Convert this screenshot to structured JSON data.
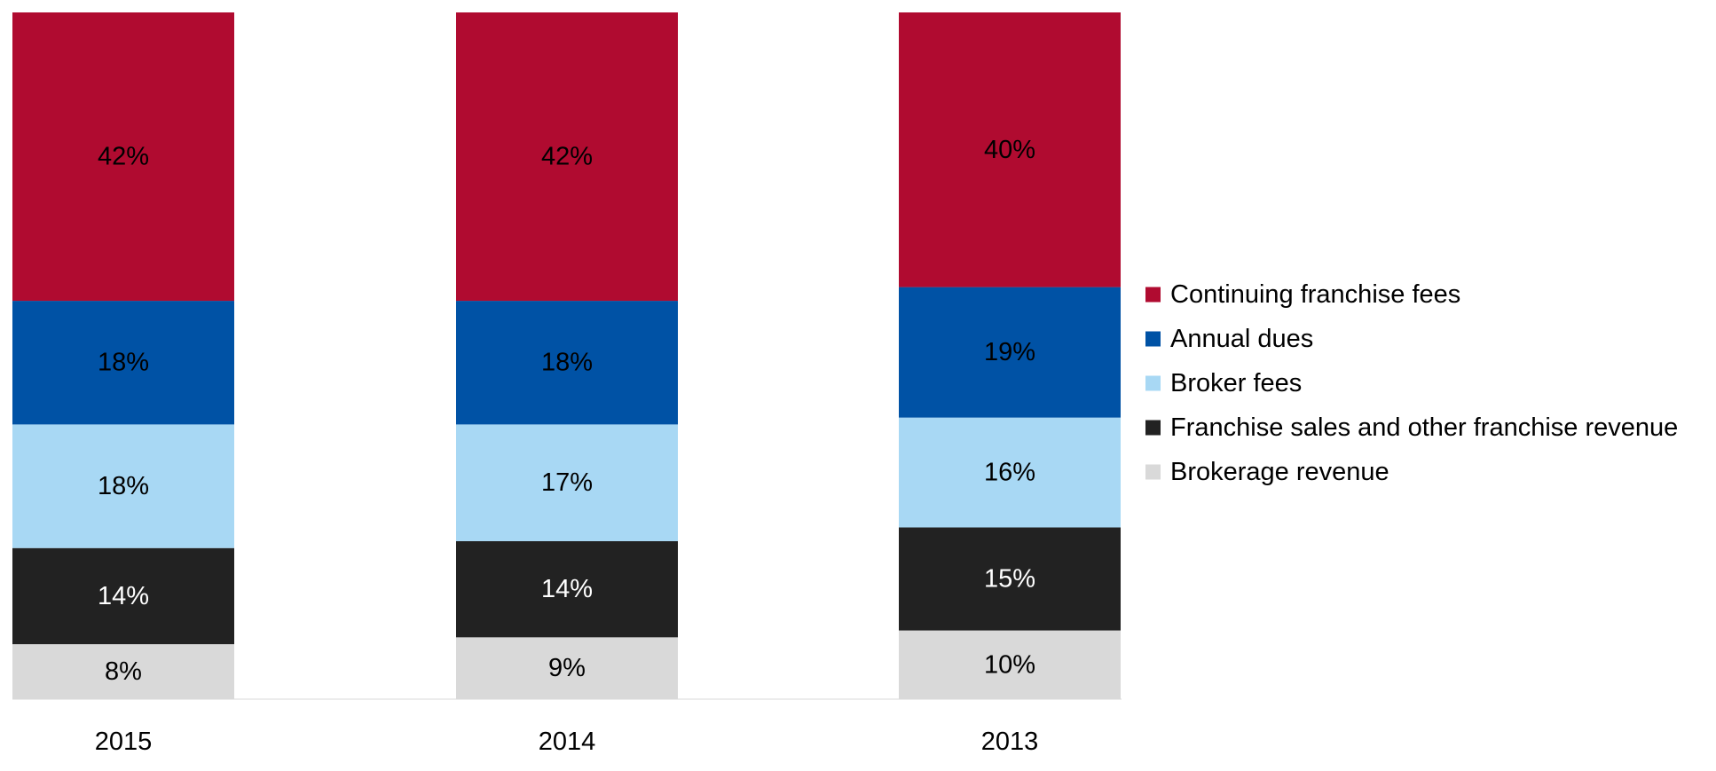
{
  "chart_data": {
    "type": "bar",
    "stacked": true,
    "normalized": true,
    "categories": [
      "2015",
      "2014",
      "2013"
    ],
    "series": [
      {
        "name": "Brokerage revenue",
        "color": "#d9d9d9",
        "label_color": "#000000",
        "values": [
          8,
          9,
          10
        ],
        "labels": [
          "8%",
          "9%",
          "10%"
        ]
      },
      {
        "name": "Franchise sales and other franchise revenue",
        "color": "#222222",
        "label_color": "#ffffff",
        "values": [
          14,
          14,
          15
        ],
        "labels": [
          "14%",
          "14%",
          "15%"
        ]
      },
      {
        "name": "Broker fees",
        "color": "#a8d8f4",
        "label_color": "#000000",
        "values": [
          18,
          17,
          16
        ],
        "labels": [
          "18%",
          "17%",
          "16%"
        ]
      },
      {
        "name": "Annual dues",
        "color": "#0052a5",
        "label_color": "#000000",
        "values": [
          18,
          18,
          19
        ],
        "labels": [
          "18%",
          "18%",
          "19%"
        ]
      },
      {
        "name": "Continuing franchise fees",
        "color": "#b00b30",
        "label_color": "#000000",
        "values": [
          42,
          42,
          40
        ],
        "labels": [
          "42%",
          "42%",
          "40%"
        ]
      }
    ],
    "legend": {
      "position": "right",
      "order": [
        "Continuing franchise fees",
        "Annual dues",
        "Broker fees",
        "Franchise sales and other franchise revenue",
        "Brokerage revenue"
      ]
    },
    "ylim": [
      0,
      100
    ],
    "grid": false
  }
}
